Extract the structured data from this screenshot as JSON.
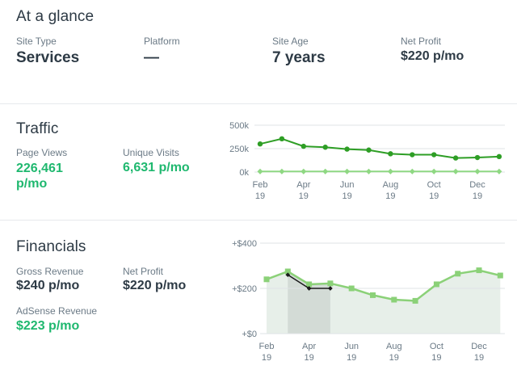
{
  "glance": {
    "title": "At a glance",
    "site_type_label": "Site Type",
    "site_type_value": "Services",
    "platform_label": "Platform",
    "platform_value": "—",
    "site_age_label": "Site Age",
    "site_age_value": "7 years",
    "net_profit_label": "Net Profit",
    "net_profit_value": "$220 p/mo"
  },
  "traffic": {
    "title": "Traffic",
    "page_views_label": "Page Views",
    "page_views_value": "226,461 p/mo",
    "unique_visits_label": "Unique Visits",
    "unique_visits_value": "6,631 p/mo"
  },
  "financials": {
    "title": "Financials",
    "gross_revenue_label": "Gross Revenue",
    "gross_revenue_value": "$240 p/mo",
    "net_profit_label": "Net Profit",
    "net_profit_value": "$220 p/mo",
    "adsense_label": "AdSense Revenue",
    "adsense_value": "$223 p/mo"
  },
  "colors": {
    "text": "#2d3a45",
    "muted": "#6b7a86",
    "green": "#1fb86f",
    "traffic_dark": "#2e9e25",
    "traffic_light": "#8fd883",
    "fin_line": "#8bd178"
  },
  "chart_data": [
    {
      "type": "line",
      "x_labels": [
        "Feb",
        "Apr",
        "Jun",
        "Aug",
        "Oct",
        "Dec"
      ],
      "x_year": "19",
      "y_ticks": [
        "0k",
        "250k",
        "500k"
      ],
      "ylim": [
        0,
        500000
      ],
      "grid": true,
      "months": [
        "Feb",
        "Mar",
        "Apr",
        "May",
        "Jun",
        "Jul",
        "Aug",
        "Sep",
        "Oct",
        "Nov",
        "Dec",
        "Jan"
      ],
      "series": [
        {
          "values": [
            300000,
            355000,
            275000,
            265000,
            245000,
            235000,
            195000,
            185000,
            185000,
            150000,
            155000,
            165000
          ]
        },
        {
          "values": [
            6000,
            6000,
            6000,
            6000,
            6000,
            6000,
            6000,
            6000,
            6000,
            6000,
            6000,
            6000
          ]
        }
      ]
    },
    {
      "type": "area",
      "x_labels": [
        "Feb",
        "Apr",
        "Jun",
        "Aug",
        "Oct",
        "Dec"
      ],
      "x_year": "19",
      "y_ticks": [
        "+$0",
        "+$200",
        "+$400"
      ],
      "ylim": [
        0,
        400
      ],
      "grid": true,
      "months": [
        "Feb",
        "Mar",
        "Apr",
        "May",
        "Jun",
        "Jul",
        "Aug",
        "Sep",
        "Oct",
        "Nov",
        "Dec",
        "Jan"
      ],
      "highlight_range": [
        "Mar",
        "May"
      ],
      "series": [
        {
          "values": [
            240,
            275,
            218,
            222,
            200,
            170,
            150,
            145,
            218,
            265,
            280,
            257
          ]
        },
        {
          "values": [
            null,
            260,
            200,
            200,
            null,
            null,
            null,
            null,
            null,
            null,
            null,
            null
          ]
        }
      ]
    }
  ]
}
